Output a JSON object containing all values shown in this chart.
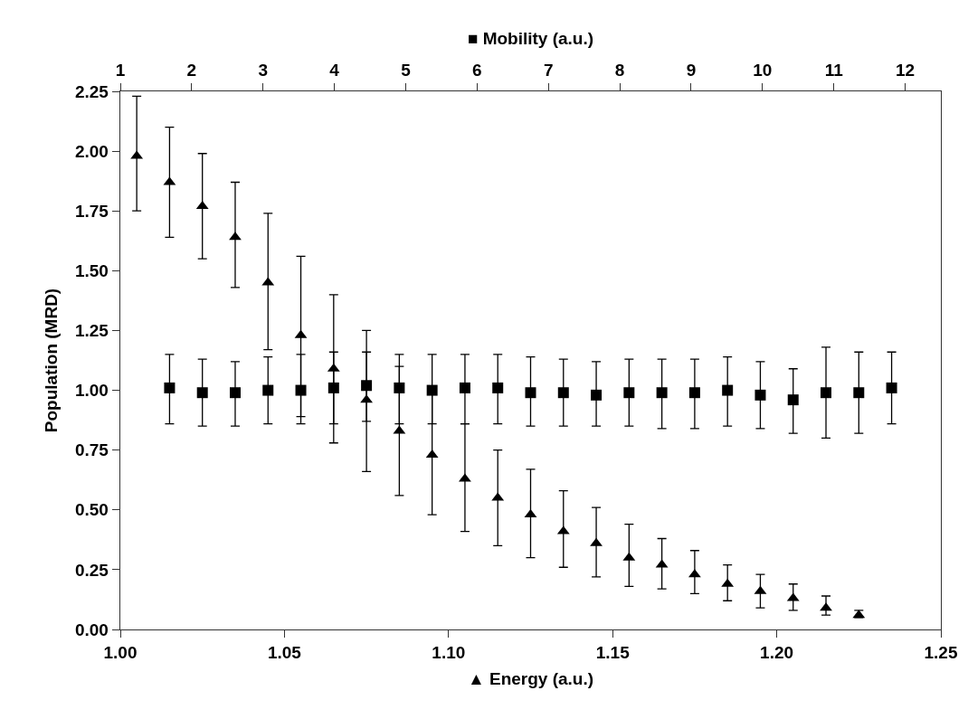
{
  "chart_data": {
    "type": "scatter",
    "xlabel": "▲ Energy (a.u.)",
    "x2label": "■ Mobility (a.u.)",
    "ylabel": "Population (MRD)",
    "xlim": [
      1.0,
      1.25
    ],
    "xticks": [
      {
        "value": 1.0,
        "label": "1.00"
      },
      {
        "value": 1.05,
        "label": "1.05"
      },
      {
        "value": 1.1,
        "label": "1.10"
      },
      {
        "value": 1.15,
        "label": "1.15"
      },
      {
        "value": 1.2,
        "label": "1.20"
      },
      {
        "value": 1.25,
        "label": "1.25"
      }
    ],
    "x2lim": [
      1,
      12.5
    ],
    "x2ticks": [
      1,
      2,
      3,
      4,
      5,
      6,
      7,
      8,
      9,
      10,
      11,
      12
    ],
    "ylim": [
      0,
      2.25
    ],
    "yticks": [
      {
        "value": 0,
        "label": "0.00"
      },
      {
        "value": 0.25,
        "label": "0.25"
      },
      {
        "value": 0.5,
        "label": "0.50"
      },
      {
        "value": 0.75,
        "label": "0.75"
      },
      {
        "value": 1,
        "label": "1.00"
      },
      {
        "value": 1.25,
        "label": "1.25"
      },
      {
        "value": 1.5,
        "label": "1.50"
      },
      {
        "value": 1.75,
        "label": "1.75"
      },
      {
        "value": 2,
        "label": "2.00"
      },
      {
        "value": 2.25,
        "label": "2.25"
      }
    ],
    "grid": false,
    "series": [
      {
        "marker": "triangle",
        "color": "#000000",
        "x": [
          1.005,
          1.015,
          1.025,
          1.035,
          1.045,
          1.055,
          1.065,
          1.075,
          1.085,
          1.095,
          1.105,
          1.115,
          1.125,
          1.135,
          1.145,
          1.155,
          1.165,
          1.175,
          1.185,
          1.195,
          1.205,
          1.215,
          1.225
        ],
        "values": [
          1.98,
          1.87,
          1.77,
          1.64,
          1.45,
          1.23,
          1.09,
          0.96,
          0.83,
          0.73,
          0.63,
          0.55,
          0.48,
          0.41,
          0.36,
          0.3,
          0.27,
          0.23,
          0.19,
          0.16,
          0.13,
          0.09,
          0.06
        ],
        "errors": [
          [
            1.75,
            2.23
          ],
          [
            1.64,
            2.1
          ],
          [
            1.55,
            1.99
          ],
          [
            1.43,
            1.87
          ],
          [
            1.17,
            1.74
          ],
          [
            0.89,
            1.56
          ],
          [
            0.78,
            1.4
          ],
          [
            0.66,
            1.25
          ],
          [
            0.56,
            1.1
          ],
          [
            0.48,
            0.99
          ],
          [
            0.41,
            0.86
          ],
          [
            0.35,
            0.75
          ],
          [
            0.3,
            0.67
          ],
          [
            0.26,
            0.58
          ],
          [
            0.22,
            0.51
          ],
          [
            0.18,
            0.44
          ],
          [
            0.17,
            0.38
          ],
          [
            0.15,
            0.33
          ],
          [
            0.12,
            0.27
          ],
          [
            0.09,
            0.23
          ],
          [
            0.08,
            0.19
          ],
          [
            0.06,
            0.14
          ],
          [
            0.05,
            0.08
          ]
        ]
      },
      {
        "axis": "x2",
        "marker": "square",
        "color": "#000000",
        "x": [
          1.69,
          2.15,
          2.61,
          3.07,
          3.53,
          3.99,
          4.45,
          4.91,
          5.37,
          5.83,
          6.29,
          6.75,
          7.21,
          7.67,
          8.13,
          8.59,
          9.05,
          9.51,
          9.97,
          10.43,
          10.89,
          11.35,
          11.81
        ],
        "values": [
          1.01,
          0.99,
          0.99,
          1.0,
          1.0,
          1.01,
          1.02,
          1.01,
          1.0,
          1.01,
          1.01,
          0.99,
          0.99,
          0.98,
          0.99,
          0.99,
          0.99,
          1.0,
          0.98,
          0.96,
          0.99,
          0.99,
          1.01
        ],
        "errors": [
          [
            0.86,
            1.15
          ],
          [
            0.85,
            1.13
          ],
          [
            0.85,
            1.12
          ],
          [
            0.86,
            1.14
          ],
          [
            0.86,
            1.15
          ],
          [
            0.86,
            1.16
          ],
          [
            0.87,
            1.16
          ],
          [
            0.86,
            1.15
          ],
          [
            0.86,
            1.15
          ],
          [
            0.86,
            1.15
          ],
          [
            0.86,
            1.15
          ],
          [
            0.85,
            1.14
          ],
          [
            0.85,
            1.13
          ],
          [
            0.85,
            1.12
          ],
          [
            0.85,
            1.13
          ],
          [
            0.84,
            1.13
          ],
          [
            0.84,
            1.13
          ],
          [
            0.85,
            1.14
          ],
          [
            0.84,
            1.12
          ],
          [
            0.82,
            1.09
          ],
          [
            0.8,
            1.18
          ],
          [
            0.82,
            1.16
          ],
          [
            0.86,
            1.16
          ]
        ]
      }
    ]
  }
}
